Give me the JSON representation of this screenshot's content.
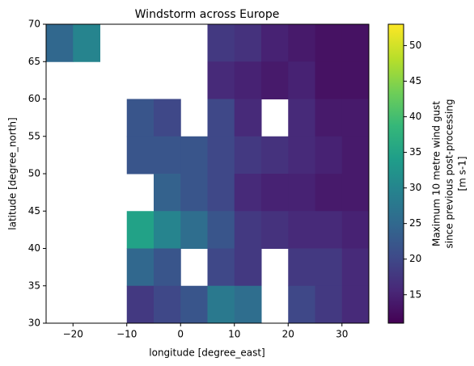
{
  "chart_data": {
    "type": "heatmap",
    "title": "Windstorm across Europe",
    "x_label": "longitude [degree_east]",
    "y_label": "latitude [degree_north]",
    "xlim": [
      -25,
      35
    ],
    "ylim": [
      30,
      70
    ],
    "xticks": [
      {
        "value": -20,
        "label": "−20"
      },
      {
        "value": -10,
        "label": "−10"
      },
      0,
      10,
      20,
      30
    ],
    "yticks": [
      30,
      35,
      40,
      45,
      50,
      55,
      60,
      65,
      70
    ],
    "values": [
      [
        25,
        30,
        null,
        null,
        null,
        null,
        18,
        17,
        15,
        14,
        13,
        13
      ],
      [
        null,
        null,
        null,
        null,
        null,
        null,
        16,
        15,
        14,
        15,
        13,
        13
      ],
      [
        null,
        null,
        null,
        22,
        20,
        null,
        20,
        16,
        null,
        16,
        14,
        14
      ],
      [
        null,
        null,
        null,
        22,
        22,
        22,
        20,
        18,
        17,
        16,
        15,
        14
      ],
      [
        null,
        null,
        null,
        null,
        24,
        22,
        20,
        16,
        15,
        15,
        14,
        14
      ],
      [
        null,
        null,
        null,
        35,
        30,
        26,
        22,
        18,
        17,
        16,
        16,
        15
      ],
      [
        null,
        null,
        null,
        25,
        22,
        null,
        20,
        18,
        null,
        18,
        18,
        16
      ],
      [
        null,
        null,
        null,
        18,
        20,
        22,
        28,
        26,
        null,
        20,
        18,
        16
      ]
    ],
    "colormap": "viridis",
    "clim": [
      11,
      53
    ],
    "cticks": [
      15,
      20,
      25,
      30,
      35,
      40,
      45,
      50
    ],
    "colorbar_label": [
      "Maximum 10 metre wind gust",
      "since previous post-processing",
      "[m s-1]"
    ]
  }
}
